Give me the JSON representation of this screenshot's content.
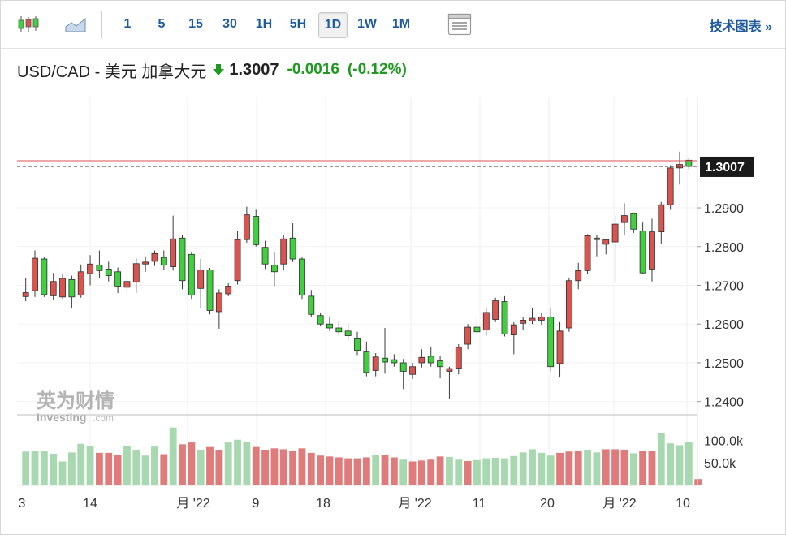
{
  "toolbar": {
    "icons": [
      "candlestick-chart-icon",
      "area-chart-icon",
      "chart-settings-icon"
    ],
    "timeframes": [
      "1",
      "5",
      "15",
      "30",
      "1H",
      "5H",
      "1D",
      "1W",
      "1M"
    ],
    "active_timeframe": "1D",
    "technical_label": "技术图表 »"
  },
  "header": {
    "pair": "USD/CAD - 美元 加拿大元",
    "price": "1.3007",
    "change": "-0.0016",
    "change_pct": "(-0.12%)",
    "down_color": "#1f9a21"
  },
  "watermark": {
    "cn": "英为财情",
    "en": "Investing",
    "suffix": ".com"
  },
  "colors": {
    "up": "#d9534f",
    "down": "#3fcf3f",
    "vol_up": "#e07b7b",
    "vol_down": "#a8d8b0",
    "ref_line": "#d9534f"
  },
  "chart_data": {
    "type": "candlestick",
    "price_axis_ticks": [
      "1.2400",
      "1.2500",
      "1.2600",
      "1.2700",
      "1.2800",
      "1.2900"
    ],
    "price_axis_range": [
      1.237,
      1.3185
    ],
    "current_price_label": "1.3007",
    "volume_axis_ticks": [
      "100.0k",
      "50.0k"
    ],
    "volume_axis_range": [
      0,
      140
    ],
    "x_labels": [
      "3",
      "14",
      "月 '22",
      "9",
      "18",
      "月 '22",
      "11",
      "20",
      "月 '22",
      "10"
    ],
    "candles": [
      [
        1.2671,
        1.2718,
        1.2659,
        1.2681
      ],
      [
        1.2686,
        1.279,
        1.267,
        1.277
      ],
      [
        1.2768,
        1.2772,
        1.267,
        1.2676
      ],
      [
        1.2673,
        1.2732,
        1.2662,
        1.271
      ],
      [
        1.267,
        1.273,
        1.2665,
        1.2718
      ],
      [
        1.2715,
        1.2725,
        1.2642,
        1.267
      ],
      [
        1.2675,
        1.2754,
        1.2668,
        1.2735
      ],
      [
        1.273,
        1.2778,
        1.27,
        1.2755
      ],
      [
        1.2752,
        1.279,
        1.2718,
        1.2738
      ],
      [
        1.2742,
        1.2761,
        1.271,
        1.2725
      ],
      [
        1.2735,
        1.2746,
        1.268,
        1.2698
      ],
      [
        1.2695,
        1.2723,
        1.2678,
        1.271
      ],
      [
        1.2708,
        1.277,
        1.268,
        1.2756
      ],
      [
        1.2755,
        1.2775,
        1.2735,
        1.276
      ],
      [
        1.2762,
        1.279,
        1.275,
        1.2782
      ],
      [
        1.2772,
        1.279,
        1.274,
        1.2752
      ],
      [
        1.2748,
        1.288,
        1.2738,
        1.282
      ],
      [
        1.2822,
        1.283,
        1.269,
        1.2712
      ],
      [
        1.278,
        1.2785,
        1.2665,
        1.2675
      ],
      [
        1.2692,
        1.2768,
        1.264,
        1.274
      ],
      [
        1.274,
        1.2745,
        1.2625,
        1.2635
      ],
      [
        1.2632,
        1.269,
        1.2588,
        1.268
      ],
      [
        1.2678,
        1.2705,
        1.2672,
        1.2698
      ],
      [
        1.2712,
        1.284,
        1.2702,
        1.2818
      ],
      [
        1.2818,
        1.2903,
        1.281,
        1.2882
      ],
      [
        1.2878,
        1.2895,
        1.28,
        1.2805
      ],
      [
        1.2798,
        1.2815,
        1.2742,
        1.2755
      ],
      [
        1.2752,
        1.2785,
        1.2698,
        1.2735
      ],
      [
        1.2755,
        1.283,
        1.2738,
        1.282
      ],
      [
        1.2822,
        1.286,
        1.276,
        1.2768
      ],
      [
        1.2768,
        1.2772,
        1.2665,
        1.2675
      ],
      [
        1.2672,
        1.2688,
        1.2618,
        1.2625
      ],
      [
        1.2622,
        1.2628,
        1.2595,
        1.26
      ],
      [
        1.26,
        1.262,
        1.2582,
        1.259
      ],
      [
        1.259,
        1.2608,
        1.257,
        1.258
      ],
      [
        1.2582,
        1.26,
        1.2558,
        1.257
      ],
      [
        1.2562,
        1.258,
        1.252,
        1.2532
      ],
      [
        1.2528,
        1.2555,
        1.2465,
        1.2475
      ],
      [
        1.248,
        1.2525,
        1.2465,
        1.2515
      ],
      [
        1.2512,
        1.259,
        1.2472,
        1.2502
      ],
      [
        1.2508,
        1.2522,
        1.249,
        1.25
      ],
      [
        1.25,
        1.251,
        1.2432,
        1.2478
      ],
      [
        1.247,
        1.25,
        1.2458,
        1.249
      ],
      [
        1.25,
        1.2535,
        1.2488,
        1.2514
      ],
      [
        1.2517,
        1.254,
        1.249,
        1.25
      ],
      [
        1.2505,
        1.2518,
        1.246,
        1.249
      ],
      [
        1.2478,
        1.249,
        1.2408,
        1.2485
      ],
      [
        1.2486,
        1.2548,
        1.247,
        1.254
      ],
      [
        1.2548,
        1.26,
        1.2535,
        1.2592
      ],
      [
        1.2592,
        1.2622,
        1.2575,
        1.258
      ],
      [
        1.2585,
        1.264,
        1.257,
        1.263
      ],
      [
        1.2612,
        1.2668,
        1.2605,
        1.266
      ],
      [
        1.2658,
        1.2672,
        1.2568,
        1.2574
      ],
      [
        1.2572,
        1.2605,
        1.2522,
        1.2598
      ],
      [
        1.2602,
        1.2618,
        1.2585,
        1.261
      ],
      [
        1.2608,
        1.264,
        1.26,
        1.2615
      ],
      [
        1.261,
        1.263,
        1.2598,
        1.2618
      ],
      [
        1.2618,
        1.2642,
        1.2478,
        1.249
      ],
      [
        1.2498,
        1.2605,
        1.2462,
        1.2582
      ],
      [
        1.259,
        1.272,
        1.258,
        1.2712
      ],
      [
        1.2712,
        1.2758,
        1.269,
        1.2738
      ],
      [
        1.2738,
        1.2832,
        1.273,
        1.2828
      ],
      [
        1.2822,
        1.283,
        1.2775,
        1.2818
      ],
      [
        1.2806,
        1.282,
        1.278,
        1.2818
      ],
      [
        1.2812,
        1.288,
        1.2708,
        1.2858
      ],
      [
        1.2862,
        1.2912,
        1.283,
        1.288
      ],
      [
        1.2885,
        1.2888,
        1.2835,
        1.2845
      ],
      [
        1.284,
        1.2862,
        1.273,
        1.2732
      ],
      [
        1.2742,
        1.2872,
        1.271,
        1.2838
      ],
      [
        1.2838,
        1.2915,
        1.2808,
        1.2908
      ],
      [
        1.2908,
        1.301,
        1.2895,
        1.3003
      ],
      [
        1.3003,
        1.3045,
        1.296,
        1.3012
      ],
      [
        1.3023,
        1.3028,
        1.2998,
        1.3007
      ]
    ],
    "volumes": [
      [
        75,
        0
      ],
      [
        77,
        0
      ],
      [
        77,
        0
      ],
      [
        70,
        0
      ],
      [
        53,
        0
      ],
      [
        73,
        0
      ],
      [
        92,
        0
      ],
      [
        88,
        0
      ],
      [
        72,
        1
      ],
      [
        72,
        1
      ],
      [
        67,
        1
      ],
      [
        88,
        0
      ],
      [
        79,
        0
      ],
      [
        66,
        0
      ],
      [
        86,
        0
      ],
      [
        69,
        1
      ],
      [
        128,
        0
      ],
      [
        91,
        1
      ],
      [
        95,
        1
      ],
      [
        79,
        0
      ],
      [
        85,
        1
      ],
      [
        79,
        1
      ],
      [
        95,
        0
      ],
      [
        101,
        0
      ],
      [
        97,
        0
      ],
      [
        85,
        1
      ],
      [
        79,
        1
      ],
      [
        82,
        1
      ],
      [
        80,
        1
      ],
      [
        77,
        1
      ],
      [
        82,
        1
      ],
      [
        72,
        1
      ],
      [
        66,
        1
      ],
      [
        64,
        1
      ],
      [
        62,
        1
      ],
      [
        60,
        1
      ],
      [
        60,
        1
      ],
      [
        62,
        1
      ],
      [
        67,
        0
      ],
      [
        67,
        1
      ],
      [
        62,
        1
      ],
      [
        57,
        0
      ],
      [
        53,
        1
      ],
      [
        55,
        1
      ],
      [
        57,
        1
      ],
      [
        64,
        1
      ],
      [
        63,
        0
      ],
      [
        57,
        0
      ],
      [
        54,
        1
      ],
      [
        56,
        0
      ],
      [
        60,
        0
      ],
      [
        61,
        0
      ],
      [
        60,
        0
      ],
      [
        65,
        0
      ],
      [
        73,
        0
      ],
      [
        80,
        0
      ],
      [
        72,
        0
      ],
      [
        66,
        0
      ],
      [
        72,
        1
      ],
      [
        75,
        1
      ],
      [
        76,
        1
      ],
      [
        79,
        0
      ],
      [
        73,
        0
      ],
      [
        80,
        1
      ],
      [
        80,
        1
      ],
      [
        79,
        1
      ],
      [
        71,
        0
      ],
      [
        77,
        1
      ],
      [
        76,
        1
      ],
      [
        115,
        0
      ],
      [
        93,
        0
      ],
      [
        89,
        0
      ],
      [
        96,
        0
      ],
      [
        14,
        1
      ]
    ]
  }
}
